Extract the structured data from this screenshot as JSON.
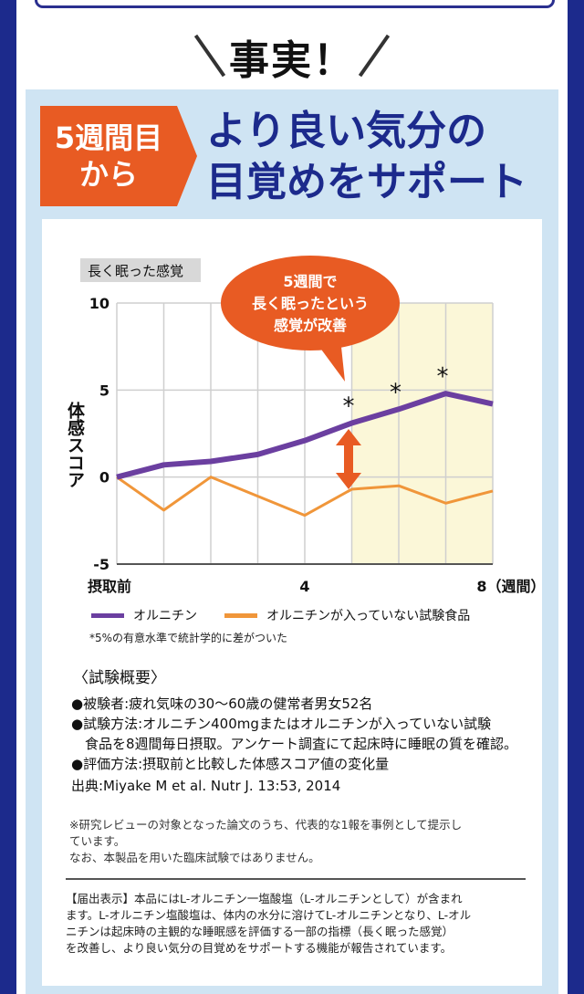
{
  "title": "事実！",
  "badge": {
    "line1": "5週間目",
    "line2": "から"
  },
  "headline": "より良い気分の\n目覚めをサポート",
  "chart_data": {
    "type": "line",
    "title": "長く眠った感覚",
    "ylabel": "体感スコア",
    "xlabel": "",
    "ylim": [
      -5,
      10
    ],
    "yticks": [
      "10",
      "5",
      "0",
      "-5"
    ],
    "x": [
      0,
      1,
      2,
      3,
      4,
      5,
      6,
      7,
      8
    ],
    "xtick_labels": [
      "摂取前",
      "4",
      "8（週間）"
    ],
    "series": [
      {
        "name": "オルニチン",
        "color": "#6b3fa0",
        "values": [
          0,
          0.7,
          0.9,
          1.3,
          2.1,
          3.1,
          3.9,
          4.8,
          4.2
        ]
      },
      {
        "name": "オルニチンが入っていない試験食品",
        "color": "#f0963a",
        "values": [
          0,
          -1.9,
          0,
          -1.1,
          -2.2,
          -0.7,
          -0.5,
          -1.5,
          -0.8
        ]
      }
    ],
    "significance_marks": [
      5,
      6,
      7
    ],
    "highlight_from": 5,
    "grid": true,
    "callout": {
      "line1": "5週間で",
      "line2": "長く眠ったという",
      "line3": "感覚が改善"
    },
    "footnote": "*5%の有意水準で統計学的に差がついた"
  },
  "summary": {
    "title": "〈試験概要〉",
    "bullets": [
      "●被験者:疲れ気味の30～60歳の健常者男女52名",
      "●試験方法:オルニチン400mgまたはオルニチンが入っていない試験",
      "　食品を8週間毎日摂取。アンケート調査にて起床時に睡眠の質を確認。",
      "●評価方法:摂取前と比較した体感スコア値の変化量"
    ],
    "source": "出典:Miyake M et al. Nutr J. 13:53, 2014"
  },
  "remarks": {
    "line1": "※研究レビューの対象となった論文のうち、代表的な1報を事例として提示し",
    "line2": "ています。",
    "line3": "なお、本製品を用いた臨床試験ではありません。"
  },
  "notification": {
    "line1": "【届出表示】本品にはL-オルニチン一塩酸塩（L-オルニチンとして）が含まれ",
    "line2": "ます。L-オルニチン塩酸塩は、体内の水分に溶けてL-オルニチンとなり、L-オル",
    "line3": "ニチンは起床時の主観的な睡眠感を評価する一部の指標（長く眠った感覚）",
    "line4": "を改善し、より良い気分の目覚めをサポートする機能が報告されています。"
  }
}
